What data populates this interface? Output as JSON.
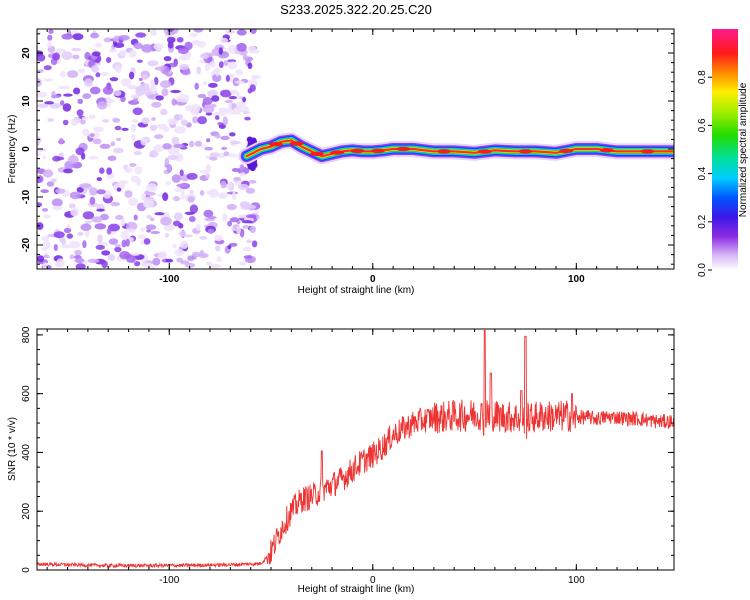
{
  "title": "S233.2025.322.20.25.C20",
  "colors": {
    "snr_line": "#ee3333",
    "ridge_core": "#ff2a2a",
    "noise": "#7a2be2"
  },
  "chart_data": [
    {
      "type": "heatmap",
      "title": "S233.2025.322.20.25.C20",
      "xlabel": "Height of straight line (km)",
      "ylabel": "Frequency (Hz)",
      "xlim": [
        -165,
        148
      ],
      "ylim": [
        -25,
        25
      ],
      "xticks": [
        -100,
        0,
        100
      ],
      "xtick_labels": [
        "-100",
        "0",
        "100"
      ],
      "yticks": [
        -20,
        -10,
        0,
        10,
        20
      ],
      "ytick_labels": [
        "-20",
        "-10",
        "0",
        "10",
        "20"
      ],
      "noise_region_x": [
        -165,
        -60
      ],
      "ridge": {
        "x": [
          -62,
          -55,
          -50,
          -45,
          -40,
          -35,
          -30,
          -25,
          -20,
          -15,
          -10,
          -5,
          0,
          5,
          10,
          20,
          30,
          40,
          50,
          60,
          70,
          80,
          90,
          100,
          110,
          120,
          130,
          140,
          148
        ],
        "y": [
          -1.5,
          0,
          0.5,
          1.5,
          1.8,
          0.5,
          -0.5,
          -1.5,
          -1.0,
          -0.5,
          -0.3,
          -0.5,
          -0.5,
          -0.3,
          0,
          0,
          -0.5,
          -0.5,
          -0.8,
          -0.3,
          -0.5,
          -0.5,
          -0.8,
          0,
          0,
          -0.5,
          -0.5,
          -0.5,
          -0.5
        ]
      },
      "colorbar": {
        "label": "Normalized spectral amplitude",
        "range": [
          0,
          1
        ],
        "ticks": [
          0.0,
          0.2,
          0.4,
          0.6,
          0.8
        ],
        "tick_labels": [
          "0.0",
          "0.2",
          "0.4",
          "0.6",
          "0.8"
        ]
      }
    },
    {
      "type": "line",
      "xlabel": "Height of straight line (km)",
      "ylabel": "SNR (10 * v/v)",
      "xlim": [
        -165,
        148
      ],
      "ylim": [
        0,
        820
      ],
      "xticks": [
        -100,
        0,
        100
      ],
      "xtick_labels": [
        "-100",
        "0",
        "100"
      ],
      "yticks": [
        0,
        200,
        400,
        600,
        800
      ],
      "ytick_labels": [
        "0",
        "200",
        "400",
        "600",
        "800"
      ],
      "series": [
        {
          "name": "SNR",
          "x": [
            -165,
            -150,
            -130,
            -110,
            -90,
            -70,
            -55,
            -50,
            -45,
            -40,
            -35,
            -30,
            -25,
            -20,
            -15,
            -10,
            -5,
            0,
            5,
            10,
            15,
            20,
            25,
            30,
            35,
            40,
            45,
            50,
            55,
            60,
            65,
            70,
            75,
            80,
            85,
            90,
            95,
            100,
            105,
            110,
            115,
            120,
            125,
            130,
            135,
            140,
            148
          ],
          "y": [
            20,
            18,
            15,
            15,
            16,
            18,
            22,
            60,
            140,
            200,
            240,
            250,
            270,
            290,
            310,
            340,
            370,
            390,
            420,
            460,
            480,
            500,
            510,
            520,
            520,
            525,
            525,
            530,
            530,
            525,
            520,
            520,
            515,
            520,
            525,
            520,
            525,
            520,
            520,
            515,
            520,
            520,
            515,
            515,
            510,
            505,
            505
          ]
        }
      ],
      "peaks": [
        {
          "x": 55,
          "y": 815
        },
        {
          "x": 58,
          "y": 670
        },
        {
          "x": 75,
          "y": 795
        },
        {
          "x": 73,
          "y": 610
        },
        {
          "x": 98,
          "y": 600
        },
        {
          "x": -25,
          "y": 405
        }
      ]
    }
  ]
}
